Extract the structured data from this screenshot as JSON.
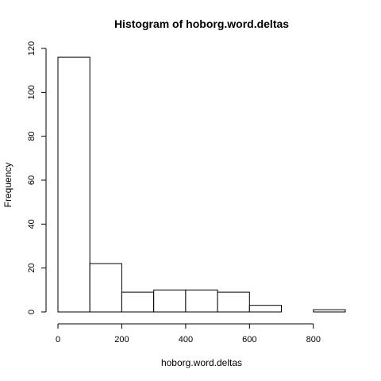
{
  "chart_data": {
    "type": "bar",
    "title": "Histogram of hoborg.word.deltas",
    "xlabel": "hoborg.word.deltas",
    "ylabel": "Frequency",
    "bins": [
      {
        "start": 0,
        "end": 100,
        "count": 116
      },
      {
        "start": 100,
        "end": 200,
        "count": 22
      },
      {
        "start": 200,
        "end": 300,
        "count": 9
      },
      {
        "start": 300,
        "end": 400,
        "count": 10
      },
      {
        "start": 400,
        "end": 500,
        "count": 10
      },
      {
        "start": 500,
        "end": 600,
        "count": 9
      },
      {
        "start": 600,
        "end": 700,
        "count": 3
      },
      {
        "start": 700,
        "end": 800,
        "count": 0
      },
      {
        "start": 800,
        "end": 900,
        "count": 1
      }
    ],
    "xlim": [
      0,
      900
    ],
    "ylim": [
      0,
      120
    ],
    "xticks": [
      0,
      200,
      400,
      600,
      800
    ],
    "yticks": [
      0,
      20,
      40,
      60,
      80,
      100,
      120
    ],
    "grid": false
  }
}
